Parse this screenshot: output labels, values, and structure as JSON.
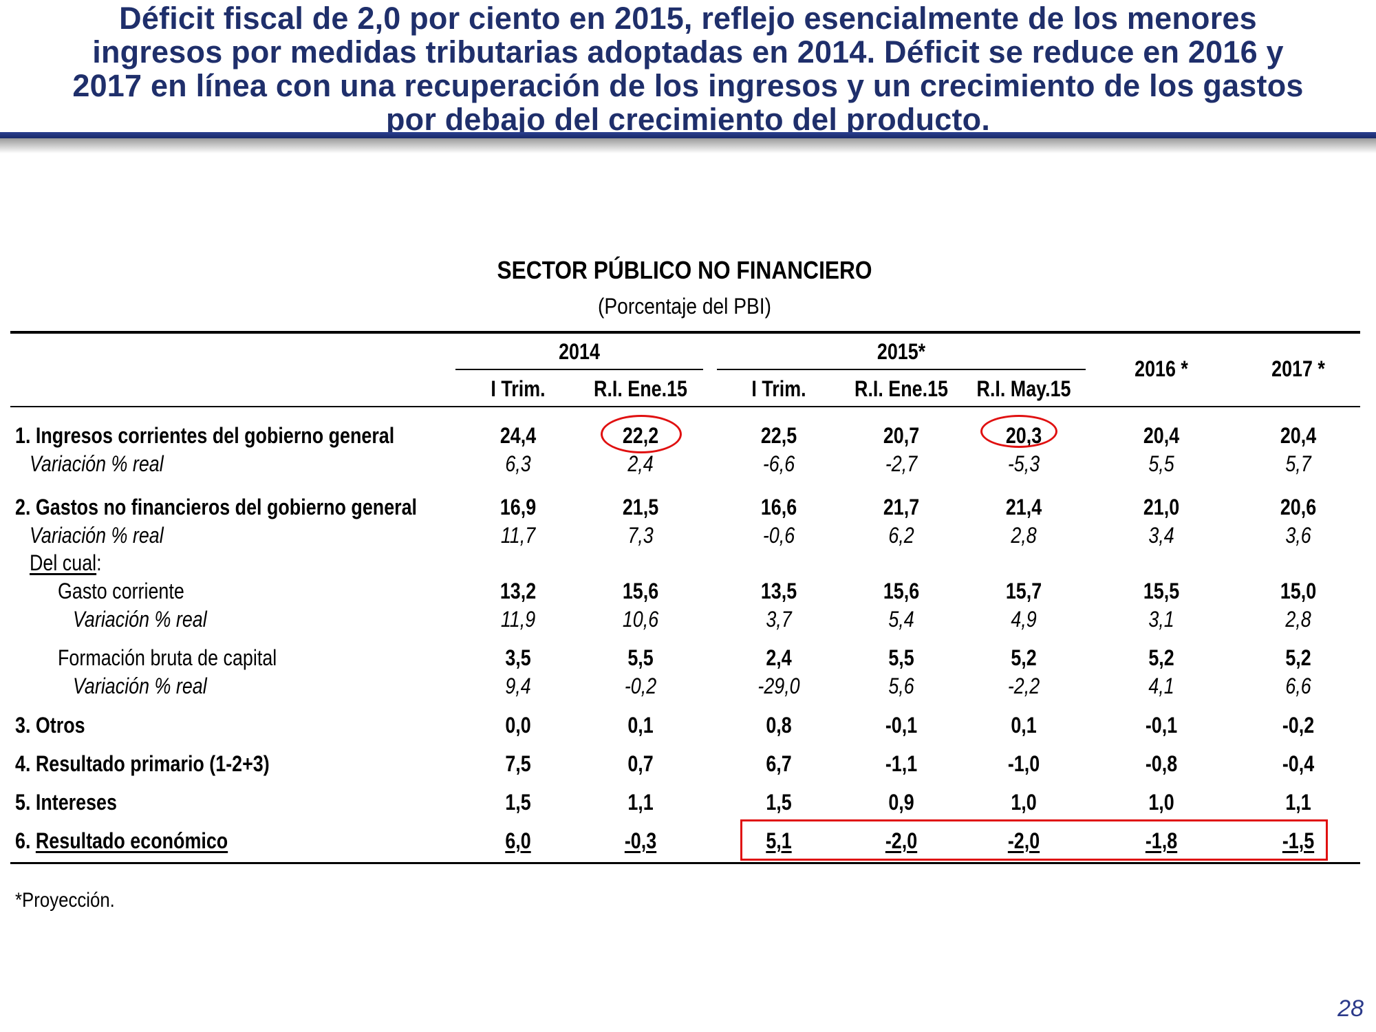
{
  "slide": {
    "title_lines": [
      "Déficit fiscal de 2,0 por ciento en 2015, reflejo esencialmente de los menores",
      "ingresos por medidas tributarias adoptadas en 2014. Déficit se reduce en 2016 y",
      "2017 en línea con una recuperación de los ingresos y un crecimiento de los gastos",
      "por debajo del crecimiento del producto."
    ],
    "page_number": "28"
  },
  "table": {
    "title": "SECTOR PÚBLICO NO FINANCIERO",
    "subtitle": "(Porcentaje del PBI)",
    "header": {
      "group_2014": "2014",
      "group_2015": "2015*",
      "y2016": "2016 *",
      "y2017": "2017 *",
      "subcols": [
        "I Trim.",
        "R.I. Ene.15",
        "I Trim.",
        "R.I. Ene.15",
        "R.I. May.15"
      ]
    },
    "rows": [
      {
        "label": "1. Ingresos corrientes del gobierno general",
        "values": [
          "24,4",
          "22,2",
          "22,5",
          "20,7",
          "20,3",
          "20,4",
          "20,4"
        ]
      },
      {
        "label": "Variación % real",
        "values": [
          "6,3",
          "2,4",
          "-6,6",
          "-2,7",
          "-5,3",
          "5,5",
          "5,7"
        ]
      },
      {
        "label": "2. Gastos no financieros del gobierno general",
        "values": [
          "16,9",
          "21,5",
          "16,6",
          "21,7",
          "21,4",
          "21,0",
          "20,6"
        ]
      },
      {
        "label": "Variación % real",
        "values": [
          "11,7",
          "7,3",
          "-0,6",
          "6,2",
          "2,8",
          "3,4",
          "3,6"
        ]
      },
      {
        "label_underlined": "Del cual",
        "label_suffix": ":"
      },
      {
        "label": "Gasto corriente",
        "values": [
          "13,2",
          "15,6",
          "13,5",
          "15,6",
          "15,7",
          "15,5",
          "15,0"
        ]
      },
      {
        "label": "Variación % real",
        "values": [
          "11,9",
          "10,6",
          "3,7",
          "5,4",
          "4,9",
          "3,1",
          "2,8"
        ]
      },
      {
        "label": "Formación bruta de capital",
        "values": [
          "3,5",
          "5,5",
          "2,4",
          "5,5",
          "5,2",
          "5,2",
          "5,2"
        ]
      },
      {
        "label": "Variación % real",
        "values": [
          "9,4",
          "-0,2",
          "-29,0",
          "5,6",
          "-2,2",
          "4,1",
          "6,6"
        ]
      },
      {
        "label": "3. Otros",
        "values": [
          "0,0",
          "0,1",
          "0,8",
          "-0,1",
          "0,1",
          "-0,1",
          "-0,2"
        ]
      },
      {
        "label": "4. Resultado primario (1-2+3)",
        "values": [
          "7,5",
          "0,7",
          "6,7",
          "-1,1",
          "-1,0",
          "-0,8",
          "-0,4"
        ]
      },
      {
        "label": "5. Intereses",
        "values": [
          "1,5",
          "1,1",
          "1,5",
          "0,9",
          "1,0",
          "1,0",
          "1,1"
        ]
      },
      {
        "label_prefix": "6. ",
        "label_underlined": "Resultado económico",
        "values": [
          "6,0",
          "-0,3",
          "5,1",
          "-2,0",
          "-2,0",
          "-1,8",
          "-1,5"
        ]
      }
    ],
    "footnote": "*Proyección.",
    "highlight_color": "#e01010"
  }
}
